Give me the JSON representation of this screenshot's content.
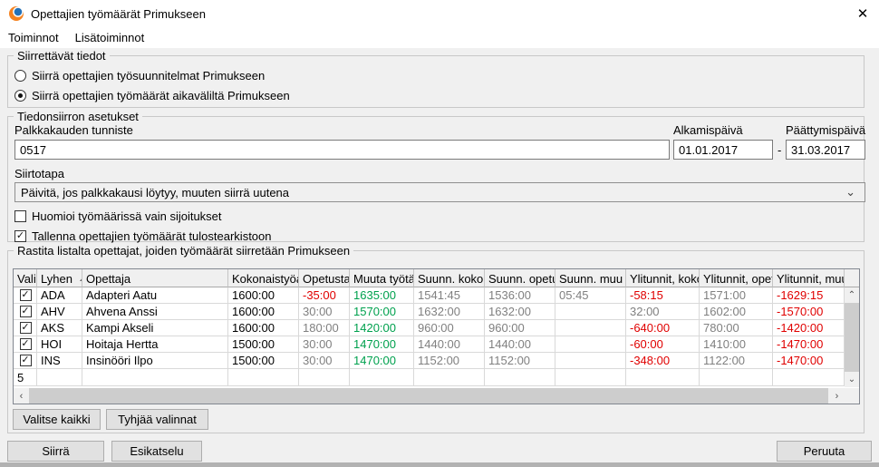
{
  "window": {
    "title": "Opettajien työmäärät Primukseen"
  },
  "icons": {
    "close": "✕",
    "chevron_down": "⌄",
    "scroll_up": "⌃",
    "scroll_down": "⌄",
    "scroll_left": "‹",
    "scroll_right": "›",
    "check": "✓"
  },
  "menu": {
    "items": [
      "Toiminnot",
      "Lisätoiminnot"
    ]
  },
  "transfer_data_group": {
    "title": "Siirrettävät tiedot",
    "radios": [
      {
        "label": "Siirrä opettajien työsuunnitelmat Primukseen",
        "selected": false
      },
      {
        "label": "Siirrä opettajien työmäärät aikaväliltä Primukseen",
        "selected": true
      }
    ]
  },
  "settings_group": {
    "title": "Tiedonsiirron asetukset",
    "pay_period": {
      "label": "Palkkakauden tunniste",
      "value": "0517"
    },
    "start_date": {
      "label": "Alkamispäivä",
      "value": "01.01.2017"
    },
    "date_separator": "-",
    "end_date": {
      "label": "Päättymispäivä",
      "value": "31.03.2017"
    },
    "transfer_method": {
      "label": "Siirtotapa",
      "value": "Päivitä, jos palkkakausi löytyy, muuten siirrä uutena"
    },
    "checkboxes": [
      {
        "label": "Huomioi työmäärissä vain sijoitukset",
        "checked": false
      },
      {
        "label": "Tallenna opettajien työmäärät tulostearkistoon",
        "checked": true
      }
    ]
  },
  "teachers_group": {
    "title": "Rastita listalta opettajat, joiden työmäärät siirretään Primukseen",
    "table": {
      "columns": [
        "Vali",
        "Lyhen",
        "Opettaja",
        "Kokonaistyöaika",
        "Opetusta",
        "Muuta työtä",
        "Suunn. kokonais",
        "Suunn. opetus",
        "Suunn. muu työ",
        "Ylitunnit, kokonais",
        "Ylitunnit, opetus",
        "Ylitunnit, muu työ"
      ],
      "sort_column": "Lyhen",
      "sort_direction": "ascending",
      "rows": [
        {
          "checked": true,
          "cells": [
            {
              "v": "ADA",
              "c": "black"
            },
            {
              "v": "Adapteri Aatu",
              "c": "black"
            },
            {
              "v": "1600:00",
              "c": "black"
            },
            {
              "v": "-35:00",
              "c": "red"
            },
            {
              "v": "1635:00",
              "c": "green"
            },
            {
              "v": "1541:45",
              "c": "gray"
            },
            {
              "v": "1536:00",
              "c": "gray"
            },
            {
              "v": "05:45",
              "c": "gray"
            },
            {
              "v": "-58:15",
              "c": "red"
            },
            {
              "v": "1571:00",
              "c": "gray"
            },
            {
              "v": "-1629:15",
              "c": "red"
            }
          ]
        },
        {
          "checked": true,
          "cells": [
            {
              "v": "AHV",
              "c": "black"
            },
            {
              "v": "Ahvena Anssi",
              "c": "black"
            },
            {
              "v": "1600:00",
              "c": "black"
            },
            {
              "v": "30:00",
              "c": "gray"
            },
            {
              "v": "1570:00",
              "c": "green"
            },
            {
              "v": "1632:00",
              "c": "gray"
            },
            {
              "v": "1632:00",
              "c": "gray"
            },
            {
              "v": "",
              "c": "gray"
            },
            {
              "v": "32:00",
              "c": "gray"
            },
            {
              "v": "1602:00",
              "c": "gray"
            },
            {
              "v": "-1570:00",
              "c": "red"
            }
          ]
        },
        {
          "checked": true,
          "cells": [
            {
              "v": "AKS",
              "c": "black"
            },
            {
              "v": "Kampi Akseli",
              "c": "black"
            },
            {
              "v": "1600:00",
              "c": "black"
            },
            {
              "v": "180:00",
              "c": "gray"
            },
            {
              "v": "1420:00",
              "c": "green"
            },
            {
              "v": "960:00",
              "c": "gray"
            },
            {
              "v": "960:00",
              "c": "gray"
            },
            {
              "v": "",
              "c": "gray"
            },
            {
              "v": "-640:00",
              "c": "red"
            },
            {
              "v": "780:00",
              "c": "gray"
            },
            {
              "v": "-1420:00",
              "c": "red"
            }
          ]
        },
        {
          "checked": true,
          "cells": [
            {
              "v": "HOI",
              "c": "black"
            },
            {
              "v": "Hoitaja Hertta",
              "c": "black"
            },
            {
              "v": "1500:00",
              "c": "black"
            },
            {
              "v": "30:00",
              "c": "gray"
            },
            {
              "v": "1470:00",
              "c": "green"
            },
            {
              "v": "1440:00",
              "c": "gray"
            },
            {
              "v": "1440:00",
              "c": "gray"
            },
            {
              "v": "",
              "c": "gray"
            },
            {
              "v": "-60:00",
              "c": "red"
            },
            {
              "v": "1410:00",
              "c": "gray"
            },
            {
              "v": "-1470:00",
              "c": "red"
            }
          ]
        },
        {
          "checked": true,
          "cells": [
            {
              "v": "INS",
              "c": "black"
            },
            {
              "v": "Insinööri Ilpo",
              "c": "black"
            },
            {
              "v": "1500:00",
              "c": "black"
            },
            {
              "v": "30:00",
              "c": "gray"
            },
            {
              "v": "1470:00",
              "c": "green"
            },
            {
              "v": "1152:00",
              "c": "gray"
            },
            {
              "v": "1152:00",
              "c": "gray"
            },
            {
              "v": "",
              "c": "gray"
            },
            {
              "v": "-348:00",
              "c": "red"
            },
            {
              "v": "1122:00",
              "c": "gray"
            },
            {
              "v": "-1470:00",
              "c": "red"
            }
          ]
        }
      ],
      "row_count": "5"
    },
    "buttons": {
      "select_all": "Valitse kaikki",
      "clear_selection": "Tyhjää valinnat"
    }
  },
  "footer": {
    "transfer": "Siirrä",
    "preview": "Esikatselu",
    "cancel": "Peruuta"
  },
  "colors": {
    "negative_red": "#e00000",
    "positive_green": "#00a14e",
    "muted_gray": "#808080",
    "dialog_bg": "#f0f0f0",
    "titlebar_bg": "#ffffff"
  }
}
